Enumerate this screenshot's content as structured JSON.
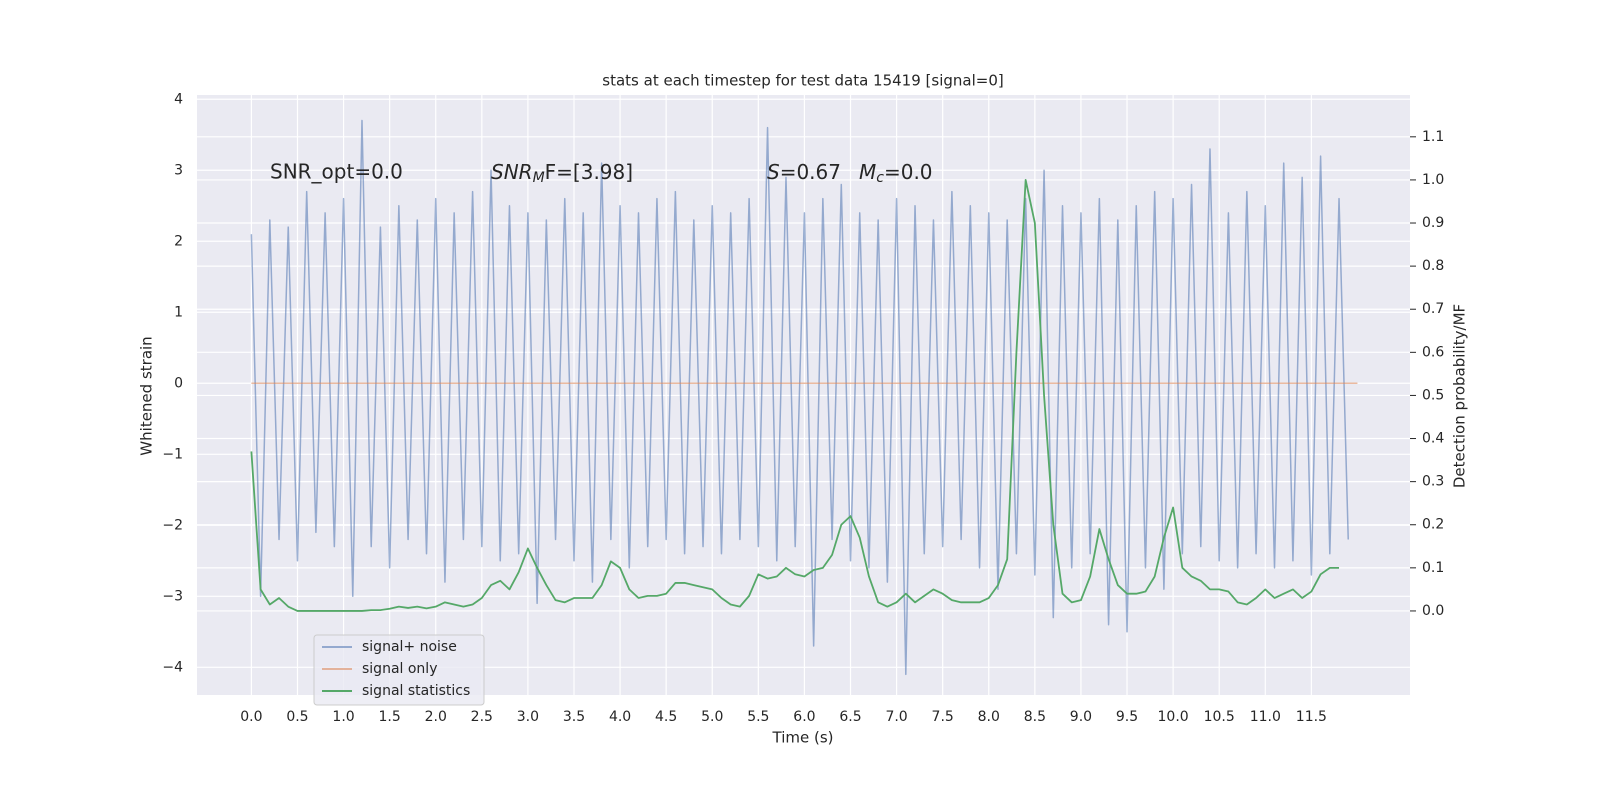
{
  "chart_data": {
    "type": "line",
    "title": "stats at each timestep for test data 15419 [signal=0]",
    "xlabel": "Time (s)",
    "ylabel": "Whitened strain",
    "y2label": "Detection probability/MF",
    "annotations": [
      "SNR_opt=0.0",
      [
        "SNR",
        "M",
        "F=[3.98]"
      ],
      [
        "S",
        "=0.67"
      ],
      [
        "M",
        "c",
        "=0.0"
      ]
    ],
    "grid": true,
    "legend": "lower left",
    "xlim": [
      -0.59,
      12.57
    ],
    "ylim": [
      -4.39,
      4.06
    ],
    "y2lim": [
      -0.195,
      1.197
    ],
    "xticks": [
      {
        "value": 0,
        "label": "0.0"
      },
      {
        "value": 0.5,
        "label": "0.5"
      },
      {
        "value": 1,
        "label": "1.0"
      },
      {
        "value": 1.5,
        "label": "1.5"
      },
      {
        "value": 2,
        "label": "2.0"
      },
      {
        "value": 2.5,
        "label": "2.5"
      },
      {
        "value": 3,
        "label": "3.0"
      },
      {
        "value": 3.5,
        "label": "3.5"
      },
      {
        "value": 4,
        "label": "4.0"
      },
      {
        "value": 4.5,
        "label": "4.5"
      },
      {
        "value": 5,
        "label": "5.0"
      },
      {
        "value": 5.5,
        "label": "5.5"
      },
      {
        "value": 6,
        "label": "6.0"
      },
      {
        "value": 6.5,
        "label": "6.5"
      },
      {
        "value": 7,
        "label": "7.0"
      },
      {
        "value": 7.5,
        "label": "7.5"
      },
      {
        "value": 8,
        "label": "8.0"
      },
      {
        "value": 8.5,
        "label": "8.5"
      },
      {
        "value": 9,
        "label": "9.0"
      },
      {
        "value": 9.5,
        "label": "9.5"
      },
      {
        "value": 10,
        "label": "10.0"
      },
      {
        "value": 10.5,
        "label": "10.5"
      },
      {
        "value": 11,
        "label": "11.0"
      },
      {
        "value": 11.5,
        "label": "11.5"
      }
    ],
    "yticks": [
      {
        "value": -4,
        "label": "−4"
      },
      {
        "value": -3,
        "label": "−3"
      },
      {
        "value": -2,
        "label": "−2"
      },
      {
        "value": -1,
        "label": "−1"
      },
      0,
      1,
      2,
      3,
      4
    ],
    "y2ticks": [
      {
        "value": 0,
        "label": "0.0"
      },
      {
        "value": 0.1,
        "label": "0.1"
      },
      {
        "value": 0.2,
        "label": "0.2"
      },
      {
        "value": 0.3,
        "label": "0.3"
      },
      {
        "value": 0.4,
        "label": "0.4"
      },
      {
        "value": 0.5,
        "label": "0.5"
      },
      {
        "value": 0.6,
        "label": "0.6"
      },
      {
        "value": 0.7,
        "label": "0.7"
      },
      {
        "value": 0.8,
        "label": "0.8"
      },
      {
        "value": 0.9,
        "label": "0.9"
      },
      {
        "value": 1,
        "label": "1.0"
      },
      {
        "value": 1.1,
        "label": "1.1"
      }
    ],
    "series": [
      {
        "name": "signal+ noise",
        "color": "#4c72b0",
        "x": [
          0,
          0.1,
          0.2,
          0.3,
          0.4,
          0.5,
          0.6,
          0.7,
          0.8,
          0.9,
          1,
          1.1,
          1.2,
          1.3,
          1.4,
          1.5,
          1.6,
          1.7,
          1.8,
          1.9,
          2,
          2.1,
          2.2,
          2.3,
          2.4,
          2.5,
          2.6,
          2.7,
          2.8,
          2.9,
          3,
          3.1,
          3.2,
          3.3,
          3.4,
          3.5,
          3.6,
          3.7,
          3.8,
          3.9,
          4,
          4.1,
          4.2,
          4.3,
          4.4,
          4.5,
          4.6,
          4.7,
          4.8,
          4.9,
          5,
          5.1,
          5.2,
          5.3,
          5.4,
          5.5,
          5.6,
          5.7,
          5.8,
          5.9,
          6,
          6.1,
          6.2,
          6.3,
          6.4,
          6.5,
          6.6,
          6.7,
          6.8,
          6.9,
          7,
          7.1,
          7.2,
          7.3,
          7.4,
          7.5,
          7.6,
          7.7,
          7.8,
          7.9,
          8,
          8.1,
          8.2,
          8.3,
          8.4,
          8.5,
          8.6,
          8.7,
          8.8,
          8.9,
          9,
          9.1,
          9.2,
          9.3,
          9.4,
          9.5,
          9.6,
          9.7,
          9.8,
          9.9,
          10,
          10.1,
          10.2,
          10.3,
          10.4,
          10.5,
          10.6,
          10.7,
          10.8,
          10.9,
          11,
          11.1,
          11.2,
          11.3,
          11.4,
          11.5,
          11.6,
          11.7,
          11.8,
          11.9
        ],
        "values": [
          2.1,
          -3.0,
          2.3,
          -2.2,
          2.2,
          -2.5,
          2.7,
          -2.1,
          2.4,
          -2.3,
          2.6,
          -3.0,
          3.7,
          -2.3,
          2.2,
          -2.6,
          2.5,
          -2.2,
          2.3,
          -2.4,
          2.6,
          -2.8,
          2.4,
          -2.2,
          2.7,
          -2.3,
          3.0,
          -2.5,
          2.5,
          -2.4,
          2.4,
          -3.1,
          2.3,
          -2.2,
          2.6,
          -2.5,
          2.4,
          -2.8,
          3.1,
          -2.2,
          2.5,
          -2.6,
          2.4,
          -2.3,
          2.6,
          -2.2,
          2.7,
          -2.4,
          2.3,
          -2.3,
          2.5,
          -2.4,
          2.4,
          -2.2,
          2.6,
          -2.3,
          3.6,
          -2.5,
          2.9,
          -2.3,
          2.4,
          -3.7,
          2.6,
          -2.2,
          2.8,
          -2.5,
          2.4,
          -2.6,
          2.3,
          -2.8,
          2.6,
          -4.1,
          2.5,
          -2.4,
          2.3,
          -2.3,
          2.7,
          -2.2,
          2.5,
          -2.6,
          2.4,
          -2.9,
          2.3,
          -2.4,
          2.6,
          -2.7,
          3.0,
          -3.3,
          2.5,
          -2.6,
          2.4,
          -2.4,
          2.6,
          -3.4,
          2.3,
          -3.5,
          2.5,
          -2.6,
          2.7,
          -2.9,
          2.6,
          -2.4,
          2.8,
          -2.3,
          3.3,
          -2.5,
          2.4,
          -2.6,
          2.7,
          -2.4,
          2.5,
          -2.6,
          3.1,
          -2.5,
          2.9,
          -2.7,
          3.2,
          -2.4,
          2.6,
          -2.2
        ]
      },
      {
        "name": "signal only",
        "color": "#dd8452",
        "x": [
          0,
          12
        ],
        "values": [
          0,
          0
        ]
      },
      {
        "name": "signal statistics",
        "color": "#55a868",
        "axis": "y2",
        "x": [
          0,
          0.1,
          0.2,
          0.3,
          0.4,
          0.5,
          0.6,
          0.7,
          0.8,
          0.9,
          1,
          1.1,
          1.2,
          1.3,
          1.4,
          1.5,
          1.6,
          1.7,
          1.8,
          1.9,
          2,
          2.1,
          2.2,
          2.3,
          2.4,
          2.5,
          2.6,
          2.7,
          2.8,
          2.9,
          3,
          3.1,
          3.2,
          3.3,
          3.4,
          3.5,
          3.6,
          3.7,
          3.8,
          3.9,
          4,
          4.1,
          4.2,
          4.3,
          4.4,
          4.5,
          4.6,
          4.7,
          4.8,
          4.9,
          5,
          5.1,
          5.2,
          5.3,
          5.4,
          5.5,
          5.6,
          5.7,
          5.8,
          5.9,
          6,
          6.1,
          6.2,
          6.3,
          6.4,
          6.5,
          6.6,
          6.7,
          6.8,
          6.9,
          7,
          7.1,
          7.2,
          7.3,
          7.4,
          7.5,
          7.6,
          7.7,
          7.8,
          7.9,
          8,
          8.1,
          8.2,
          8.3,
          8.4,
          8.5,
          8.6,
          8.7,
          8.8,
          8.9,
          9,
          9.1,
          9.2,
          9.3,
          9.4,
          9.5,
          9.6,
          9.7,
          9.8,
          9.9,
          10,
          10.1,
          10.2,
          10.3,
          10.4,
          10.5,
          10.6,
          10.7,
          10.8,
          10.9,
          11,
          11.1,
          11.2,
          11.3,
          11.4,
          11.5,
          11.6,
          11.7,
          11.8
        ],
        "values": [
          0.37,
          0.05,
          0.015,
          0.03,
          0.01,
          0.0,
          0.0,
          0.0,
          0.0,
          0.0,
          0.0,
          0.0,
          0.0,
          0.002,
          0.002,
          0.005,
          0.01,
          0.007,
          0.01,
          0.006,
          0.01,
          0.02,
          0.015,
          0.01,
          0.015,
          0.03,
          0.06,
          0.07,
          0.05,
          0.09,
          0.145,
          0.1,
          0.06,
          0.025,
          0.02,
          0.03,
          0.03,
          0.03,
          0.06,
          0.115,
          0.1,
          0.05,
          0.03,
          0.035,
          0.035,
          0.04,
          0.065,
          0.065,
          0.06,
          0.055,
          0.05,
          0.03,
          0.015,
          0.01,
          0.035,
          0.085,
          0.075,
          0.08,
          0.1,
          0.085,
          0.08,
          0.095,
          0.1,
          0.13,
          0.2,
          0.22,
          0.17,
          0.08,
          0.02,
          0.01,
          0.02,
          0.04,
          0.02,
          0.035,
          0.05,
          0.04,
          0.025,
          0.02,
          0.02,
          0.02,
          0.03,
          0.06,
          0.12,
          0.6,
          1.0,
          0.9,
          0.5,
          0.2,
          0.04,
          0.02,
          0.025,
          0.08,
          0.19,
          0.12,
          0.06,
          0.04,
          0.04,
          0.045,
          0.08,
          0.17,
          0.24,
          0.1,
          0.08,
          0.07,
          0.05,
          0.05,
          0.045,
          0.02,
          0.015,
          0.03,
          0.05,
          0.03,
          0.04,
          0.05,
          0.03,
          0.045,
          0.085,
          0.1,
          0.1
        ]
      }
    ]
  }
}
